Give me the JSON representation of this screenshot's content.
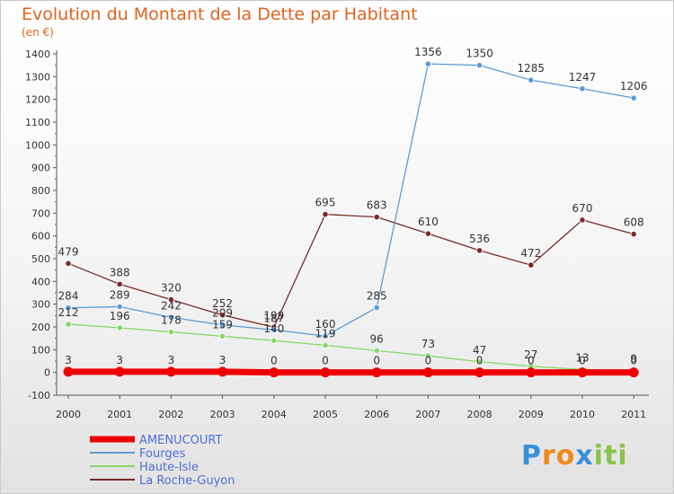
{
  "chart_data": {
    "type": "line",
    "title": "Evolution du Montant de la Dette par Habitant",
    "subtitle": "(en €)",
    "xlabel": "",
    "ylabel": "",
    "x": [
      "2000",
      "2001",
      "2002",
      "2003",
      "2004",
      "2005",
      "2006",
      "2007",
      "2008",
      "2009",
      "2010",
      "2011"
    ],
    "ylim": [
      -100,
      1400
    ],
    "yticks": [
      -100,
      0,
      100,
      200,
      300,
      400,
      500,
      600,
      700,
      800,
      900,
      1000,
      1100,
      1200,
      1300,
      1400
    ],
    "grid": false,
    "legend_position": "bottom-left",
    "series": [
      {
        "name": "AMENUCOURT",
        "color": "#ee0000",
        "values": [
          3,
          3,
          3,
          3,
          0,
          0,
          0,
          0,
          0,
          0,
          0,
          0
        ]
      },
      {
        "name": "Fourges",
        "color": "#5b9bd5",
        "values": [
          284,
          289,
          242,
          209,
          187,
          160,
          285,
          1356,
          1350,
          1285,
          1247,
          1206
        ]
      },
      {
        "name": "Haute-Isle",
        "color": "#88d86a",
        "values": [
          212,
          196,
          178,
          159,
          140,
          119,
          96,
          73,
          47,
          27,
          13,
          9
        ]
      },
      {
        "name": "La Roche-Guyon",
        "color": "#7a2a2a",
        "values": [
          479,
          388,
          320,
          252,
          199,
          695,
          683,
          610,
          536,
          472,
          670,
          608
        ]
      }
    ]
  },
  "branding": {
    "logo_letters": [
      "P",
      "r",
      "o",
      "x",
      "i",
      "t",
      "i"
    ],
    "logo_colors": [
      "#3a8fd8",
      "#ee8a1c",
      "#ee8a1c",
      "#3a8fd8",
      "#8bc34a",
      "#8bc34a",
      "#8bc34a"
    ]
  }
}
